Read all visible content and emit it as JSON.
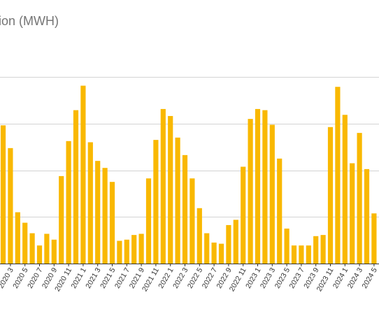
{
  "chart_data": {
    "type": "bar",
    "title": "ion (MWH)",
    "bar_color": "#F9B800",
    "grid": true,
    "ylim": [
      0,
      380
    ],
    "yticks": [
      0,
      80,
      160,
      240,
      320
    ],
    "categories": [
      "2020 2",
      "2020 3",
      "2020 4",
      "2020 5",
      "2020 6",
      "2020 7",
      "2020 8",
      "2020 9",
      "2020 10",
      "2020 11",
      "2020 12",
      "2021 1",
      "2021 2",
      "2021 3",
      "2021 4",
      "2021 5",
      "2021 6",
      "2021 7",
      "2021 8",
      "2021 9",
      "2021 10",
      "2021 11",
      "2021 12",
      "2022 1",
      "2022 2",
      "2022 3",
      "2022 4",
      "2022 5",
      "2022 6",
      "2022 7",
      "2022 8",
      "2022 9",
      "2022 10",
      "2022 11",
      "2022 12",
      "2023 1",
      "2023 2",
      "2023 3",
      "2023 4",
      "2023 5",
      "2023 6",
      "2023 7",
      "2023 8",
      "2023 9",
      "2023 10",
      "2023 11",
      "2023 12",
      "2024 1",
      "2024 2",
      "2024 3",
      "2024 4",
      "2024 5"
    ],
    "values": [
      237,
      198,
      88,
      70,
      52,
      31,
      51,
      41,
      150,
      210,
      263,
      305,
      208,
      176,
      164,
      140,
      39,
      41,
      49,
      51,
      146,
      212,
      265,
      253,
      216,
      186,
      146,
      95,
      52,
      36,
      34,
      66,
      75,
      166,
      248,
      265,
      263,
      238,
      180,
      60,
      31,
      31,
      31,
      47,
      49,
      234,
      303,
      255,
      172,
      224,
      162,
      86
    ],
    "xtick_labels": [
      "2020 3",
      "2020 5",
      "2020 7",
      "2020 9",
      "2020 11",
      "2021 1",
      "2021 3",
      "2021 5",
      "2021 7",
      "2021 9",
      "2021 11",
      "2022 1",
      "2022 3",
      "2022 5",
      "2022 7",
      "2022 9",
      "2022 11",
      "2023 1",
      "2023 3",
      "2023 5",
      "2023 7",
      "2023 9",
      "2023 11",
      "2024 1",
      "2024 3",
      "2024 5"
    ]
  }
}
